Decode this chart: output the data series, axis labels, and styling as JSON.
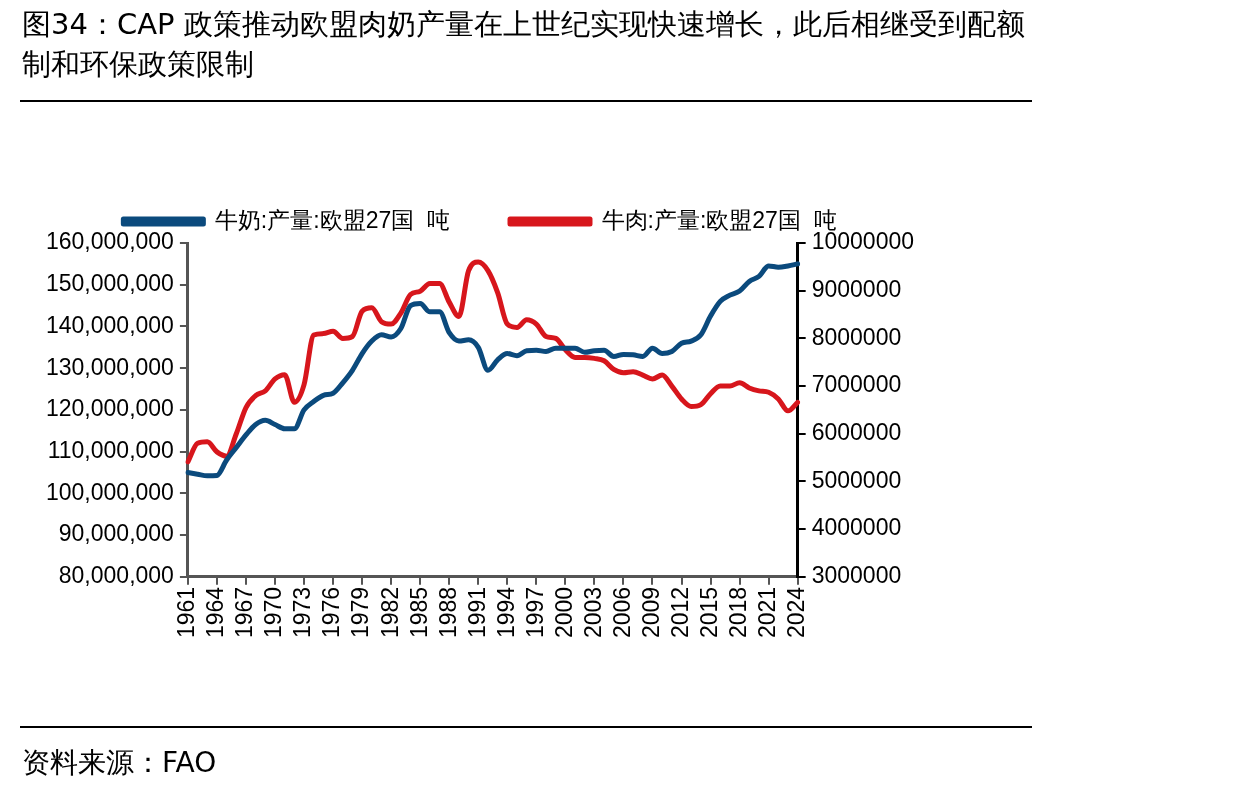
{
  "chart_data": {
    "type": "line",
    "title": "图34：CAP 政策推动欧盟肉奶产量在上世纪实现快速增长，此后相继受到配额制和环保政策限制",
    "categories": [
      "1961",
      null,
      null,
      "1964",
      null,
      null,
      "1967",
      null,
      null,
      "1970",
      null,
      null,
      "1973",
      null,
      null,
      "1976",
      null,
      null,
      "1979",
      null,
      null,
      "1982",
      null,
      null,
      "1985",
      null,
      null,
      "1988",
      null,
      null,
      "1991",
      null,
      null,
      "1994",
      null,
      null,
      "1997",
      null,
      null,
      "2000",
      null,
      null,
      "2003",
      null,
      null,
      "2006",
      null,
      null,
      "2009",
      null,
      null,
      "2012",
      null,
      null,
      "2015",
      null,
      null,
      "2018",
      null,
      null,
      "2021",
      null,
      null,
      "2024"
    ],
    "series": [
      {
        "name": "牛奶:产量:欧盟27国  吨",
        "color": "#0b4a7d",
        "axis": "y",
        "values": [
          105000000,
          104600000,
          104200000,
          104300000,
          108000000,
          111000000,
          114000000,
          116500000,
          117500000,
          116500000,
          115500000,
          115500000,
          120000000,
          122000000,
          123500000,
          124000000,
          126500000,
          129500000,
          133500000,
          136500000,
          138000000,
          137500000,
          139500000,
          145000000,
          145500000,
          143500000,
          143500000,
          138500000,
          136500000,
          136800000,
          135000000,
          129500000,
          132000000,
          133500000,
          133000000,
          134200000,
          134300000,
          134000000,
          134800000,
          134800000,
          134800000,
          133800000,
          134200000,
          134300000,
          132800000,
          133300000,
          133200000,
          132800000,
          134800000,
          133500000,
          134000000,
          136000000,
          136500000,
          138000000,
          142500000,
          146000000,
          147500000,
          148500000,
          150800000,
          152000000,
          154500000,
          154200000,
          154500000,
          155000000
        ]
      },
      {
        "name": "牛肉:产量:欧盟27国  吨",
        "color": "#d7161c",
        "axis": "y2",
        "values": [
          5410000,
          5800000,
          5830000,
          5620000,
          5530000,
          6000000,
          6550000,
          6800000,
          6900000,
          7150000,
          7240000,
          6660000,
          7030000,
          8070000,
          8100000,
          8150000,
          8000000,
          8040000,
          8570000,
          8640000,
          8350000,
          8300000,
          8530000,
          8920000,
          8990000,
          9150000,
          9150000,
          8760000,
          8460000,
          9420000,
          9600000,
          9420000,
          8960000,
          8300000,
          8230000,
          8390000,
          8300000,
          8040000,
          8000000,
          7760000,
          7600000,
          7600000,
          7580000,
          7530000,
          7350000,
          7280000,
          7300000,
          7230000,
          7150000,
          7230000,
          7000000,
          6730000,
          6570000,
          6610000,
          6840000,
          7000000,
          7000000,
          7070000,
          6960000,
          6900000,
          6870000,
          6730000,
          6480000,
          6660000
        ]
      }
    ],
    "ylim": [
      80000000,
      160000000
    ],
    "yticks": [
      {
        "value": 80000000,
        "label": "80,000,000"
      },
      {
        "value": 90000000,
        "label": "90,000,000"
      },
      {
        "value": 100000000,
        "label": "100,000,000"
      },
      {
        "value": 110000000,
        "label": "110,000,000"
      },
      {
        "value": 120000000,
        "label": "120,000,000"
      },
      {
        "value": 130000000,
        "label": "130,000,000"
      },
      {
        "value": 140000000,
        "label": "140,000,000"
      },
      {
        "value": 150000000,
        "label": "150,000,000"
      },
      {
        "value": 160000000,
        "label": "160,000,000"
      }
    ],
    "y2lim": [
      3000000,
      10000000
    ],
    "y2ticks": [
      3000000,
      4000000,
      5000000,
      6000000,
      7000000,
      8000000,
      9000000,
      10000000
    ],
    "legend": "top",
    "grid": false,
    "annotations": [
      "资料来源：FAO"
    ]
  }
}
